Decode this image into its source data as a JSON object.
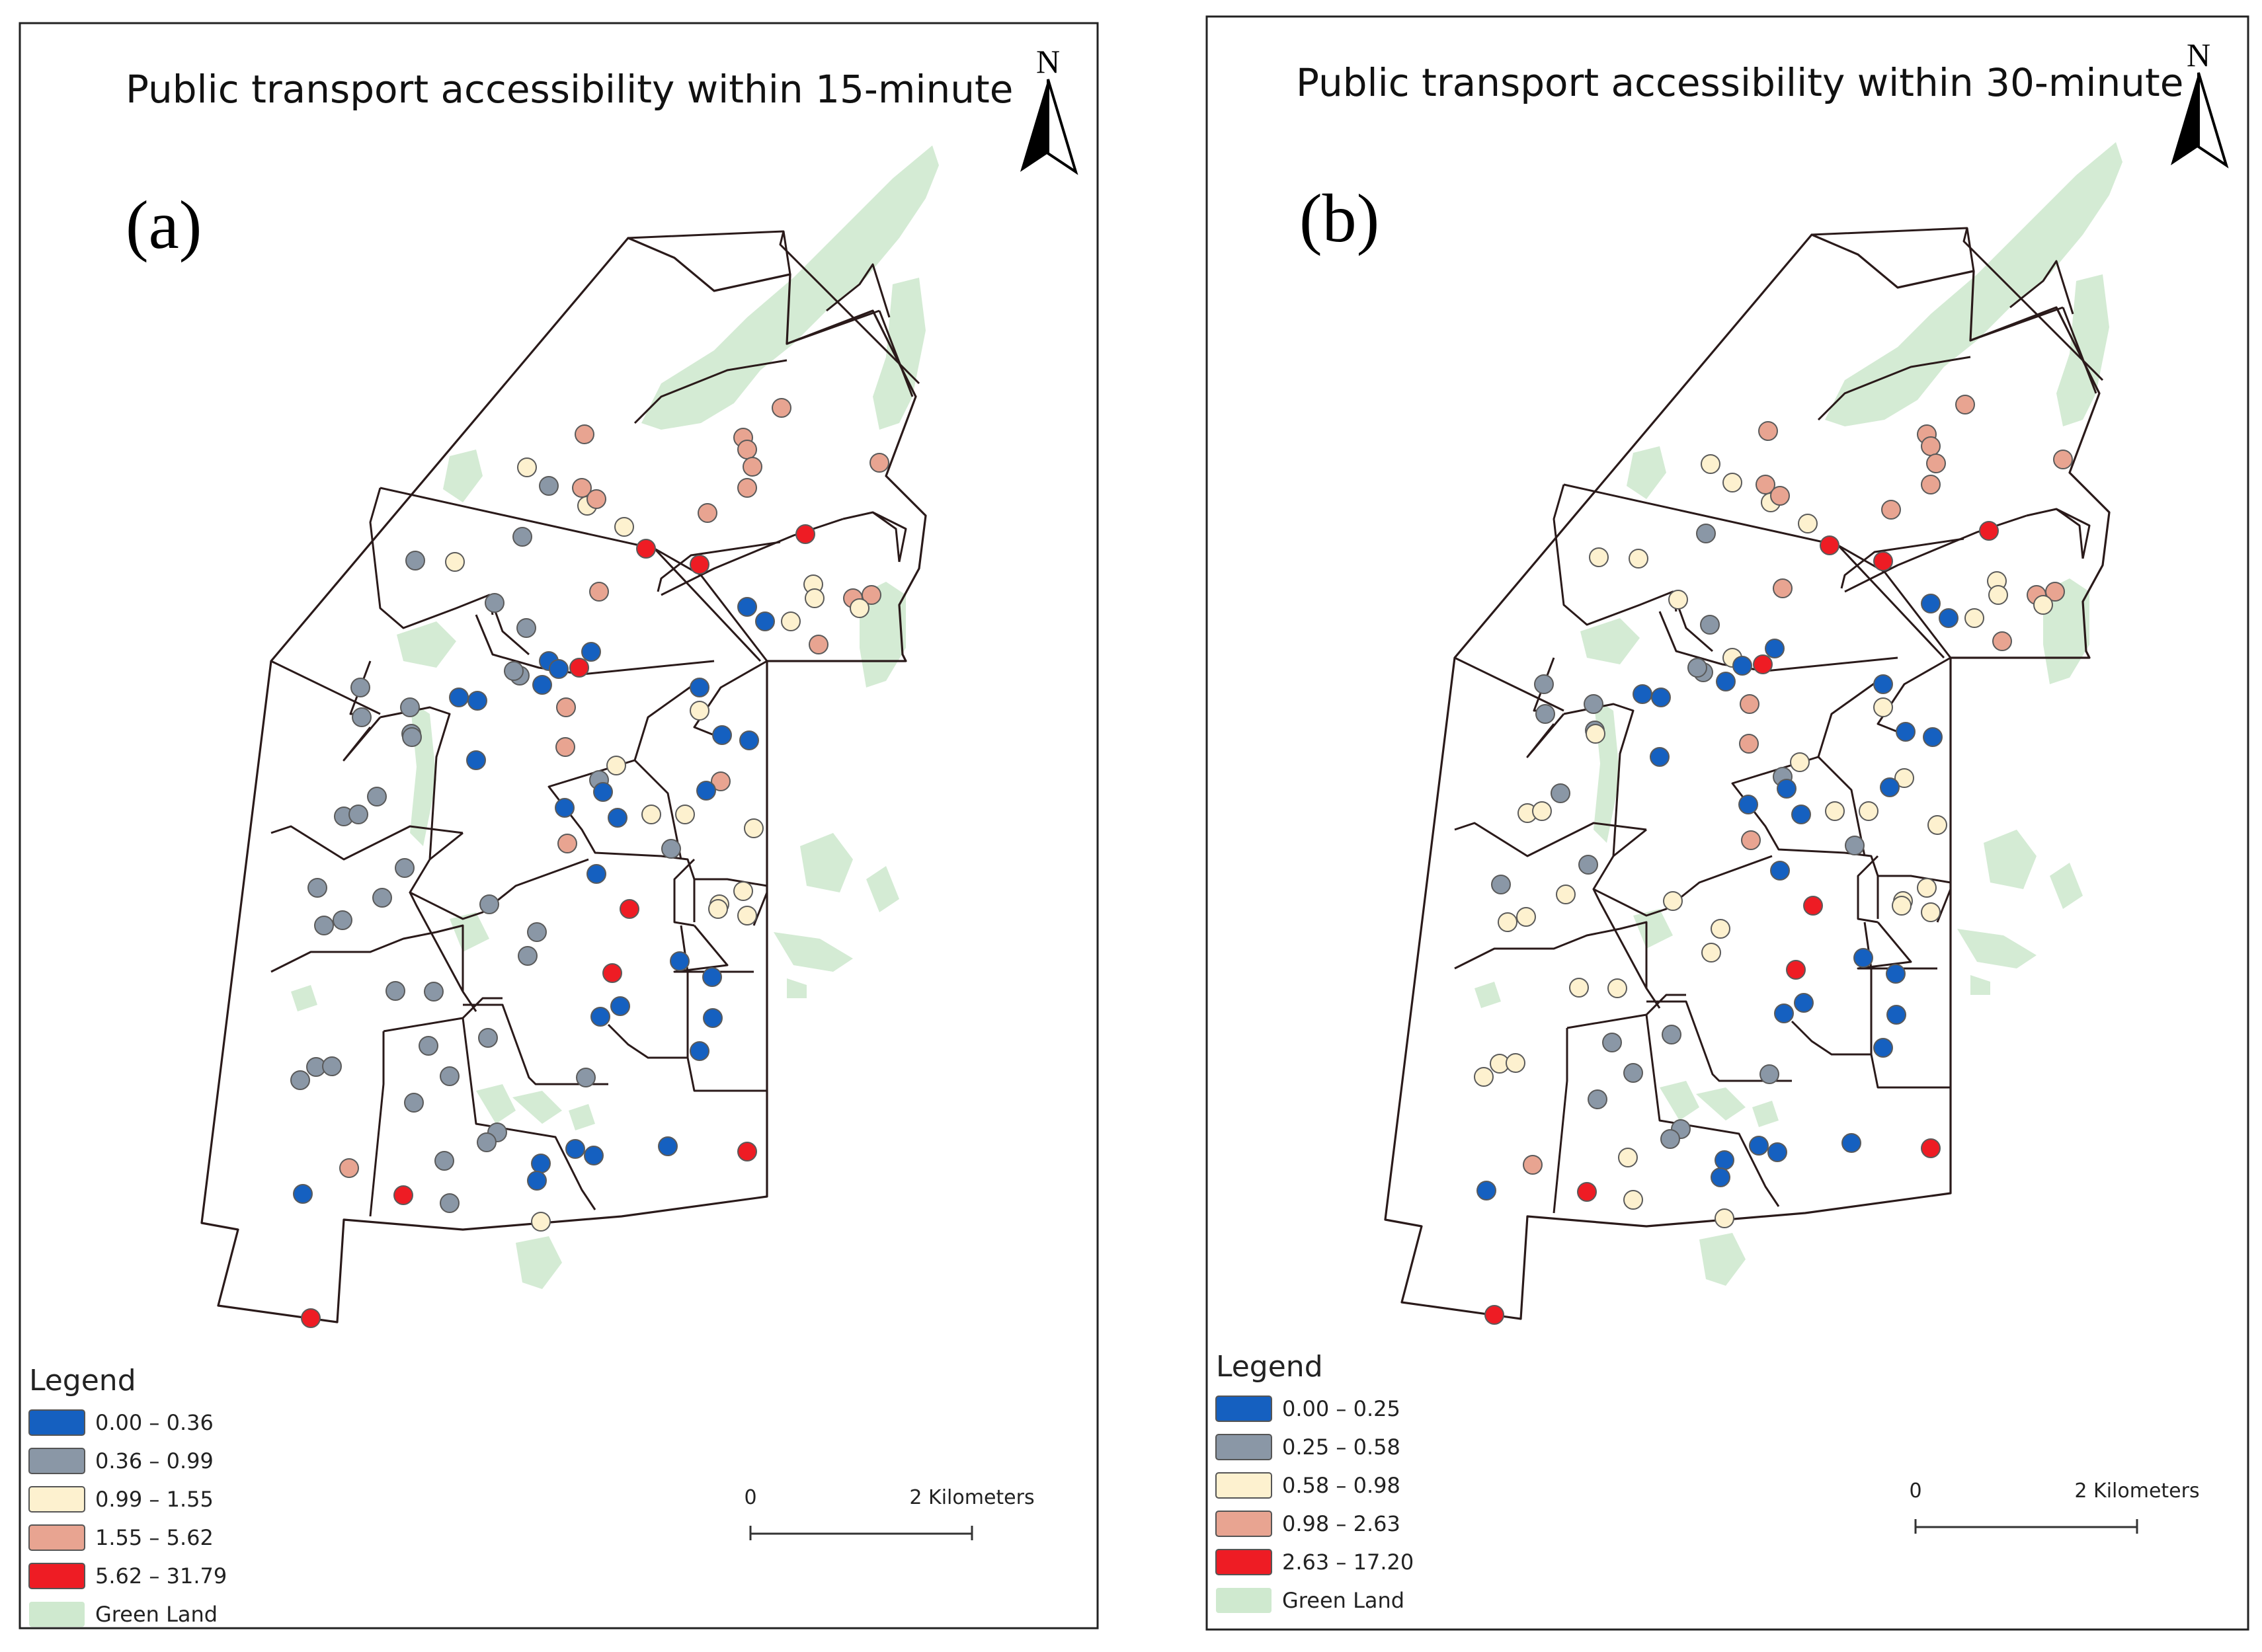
{
  "panels": [
    {
      "id": "a",
      "title": "Public transport accessibility within 15-minute",
      "panel_label": "(a)",
      "north_label": "N",
      "legend": {
        "title": "Legend",
        "classes": [
          {
            "label": "0.00 – 0.36",
            "color": "#1560c0"
          },
          {
            "label": "0.36 – 0.99",
            "color": "#8a97a6"
          },
          {
            "label": "0.99 – 1.55",
            "color": "#fdf1cf"
          },
          {
            "label": "1.55 – 5.62",
            "color": "#e8a491"
          },
          {
            "label": "5.62 – 31.79",
            "color": "#ee1c24"
          }
        ],
        "green_label": "Green Land",
        "green_color": "#cfe9cf"
      },
      "scale": {
        "start": "0",
        "end": "2 Kilometers"
      }
    },
    {
      "id": "b",
      "title": "Public transport accessibility within 30-minute",
      "panel_label": "(b)",
      "north_label": "N",
      "legend": {
        "title": "Legend",
        "classes": [
          {
            "label": "0.00 – 0.25",
            "color": "#1560c0"
          },
          {
            "label": "0.25 – 0.58",
            "color": "#8a97a6"
          },
          {
            "label": "0.58 – 0.98",
            "color": "#fdf1cf"
          },
          {
            "label": "0.98 – 2.63",
            "color": "#e8a491"
          },
          {
            "label": "2.63 – 17.20",
            "color": "#ee1c24"
          }
        ],
        "green_label": "Green Land",
        "green_color": "#cfe9cf"
      },
      "scale": {
        "start": "0",
        "end": "2 Kilometers"
      }
    }
  ]
}
